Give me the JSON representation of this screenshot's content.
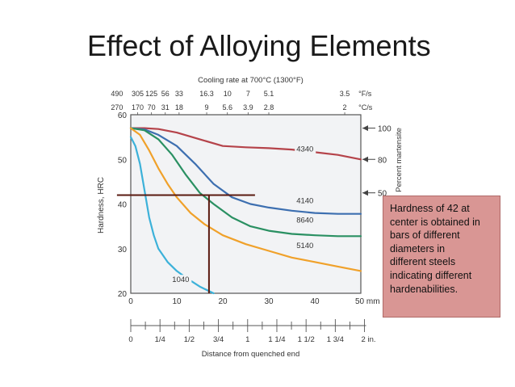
{
  "slide": {
    "title": "Effect of Alloying Elements",
    "note_lines": [
      "Hardness of 42 at",
      "center is obtained in",
      "bars of different",
      "diameters in",
      "different steels",
      "indicating different",
      "hardenabilities."
    ]
  },
  "chart_data": {
    "type": "line",
    "title": "Cooling rate at 700°C (1300°F)",
    "xlabel": "Distance from quenched end",
    "ylabel": "Hardness, HRC",
    "right_label": "Percent martensite",
    "xlim": [
      0,
      50
    ],
    "ylim": [
      20,
      60
    ],
    "x_ticks": [
      "0",
      "10",
      "20",
      "30",
      "40",
      "50 mm"
    ],
    "x_tick_values": [
      0,
      10,
      20,
      30,
      40,
      50
    ],
    "y_ticks": [
      "20",
      "30",
      "40",
      "50",
      "60"
    ],
    "y_tick_values": [
      20,
      30,
      40,
      50,
      60
    ],
    "inch_axis": {
      "labels": [
        "0",
        "1/4",
        "1/2",
        "3/4",
        "1",
        "1 1/4",
        "1 1/2",
        "1 3/4",
        "2 in."
      ],
      "values_mm": [
        0,
        6.35,
        12.7,
        19.05,
        25.4,
        31.75,
        38.1,
        44.45,
        50.8
      ]
    },
    "cooling_rate_F": {
      "labels": [
        "490",
        "305",
        "125",
        "56",
        "33",
        "16.3",
        "10",
        "7",
        "5.1",
        "3.5"
      ],
      "x_mm": [
        -3,
        1.5,
        4.5,
        7.5,
        10.5,
        16.5,
        21,
        25.5,
        30,
        46.5
      ],
      "unit": "°F/s"
    },
    "cooling_rate_C": {
      "labels": [
        "270",
        "170",
        "70",
        "31",
        "18",
        "9",
        "5.6",
        "3.9",
        "2.8",
        "2"
      ],
      "x_mm": [
        -3,
        1.5,
        4.5,
        7.5,
        10.5,
        16.5,
        21,
        25.5,
        30,
        46.5
      ],
      "unit": "°C/s"
    },
    "martensite_scale": [
      {
        "label": "100",
        "hrc": 57
      },
      {
        "label": "80",
        "hrc": 50
      },
      {
        "label": "50",
        "hrc": 42.5
      }
    ],
    "series": [
      {
        "name": "4340",
        "color": "#b5434a",
        "x": [
          0,
          3,
          6,
          10,
          15,
          20,
          25,
          30,
          35,
          40,
          45,
          50
        ],
        "y": [
          57,
          57,
          56.8,
          56,
          54.5,
          53,
          52.7,
          52.5,
          52.2,
          51.6,
          51,
          50
        ]
      },
      {
        "name": "4140",
        "color": "#3d6fb0",
        "x": [
          0,
          3,
          6,
          10,
          14,
          18,
          22,
          26,
          30,
          35,
          40,
          45,
          50
        ],
        "y": [
          57,
          56.7,
          55.5,
          53,
          49,
          44.5,
          41.5,
          40,
          39.2,
          38.5,
          38,
          37.8,
          37.8
        ]
      },
      {
        "name": "8640",
        "color": "#2a9062",
        "x": [
          0,
          3,
          6,
          9,
          12,
          15,
          18,
          22,
          26,
          30,
          35,
          40,
          45,
          50
        ],
        "y": [
          57,
          56.5,
          54.5,
          51,
          46.5,
          42.5,
          40,
          37,
          35,
          34,
          33.3,
          33,
          32.8,
          32.8
        ]
      },
      {
        "name": "5140",
        "color": "#f0a12a",
        "x": [
          0,
          2,
          4,
          6,
          8,
          10,
          13,
          16,
          20,
          25,
          30,
          35,
          40,
          45,
          50
        ],
        "y": [
          57,
          55.5,
          52,
          48,
          44.5,
          41.5,
          38,
          35.5,
          33,
          31,
          29.5,
          28,
          27,
          26,
          25
        ]
      },
      {
        "name": "1040",
        "color": "#3cb1d9",
        "x": [
          0,
          1,
          2,
          3,
          4,
          5,
          6,
          8,
          10,
          12,
          15,
          18
        ],
        "y": [
          55,
          53,
          49,
          43,
          37,
          33,
          30,
          27,
          25,
          23.5,
          21.5,
          20
        ]
      }
    ],
    "reference_lines": {
      "hardness": 42,
      "x_from_mm": -3,
      "x_to_mm": 27,
      "drop_at_mm": 17
    },
    "grid": true
  }
}
